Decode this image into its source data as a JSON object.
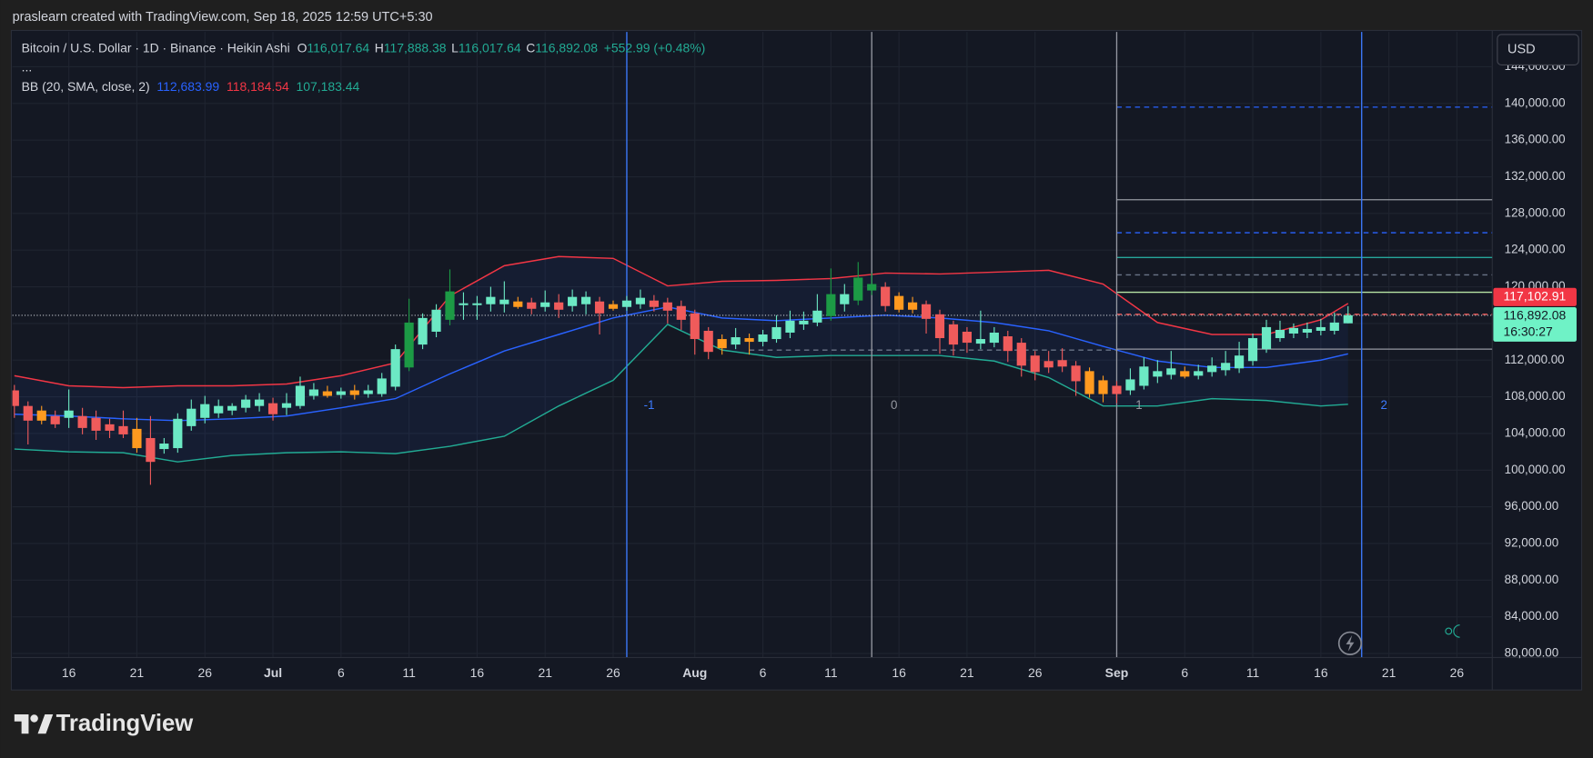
{
  "header": {
    "attribution": "praslearn created with TradingView.com, Sep 18, 2025 12:59 UTC+5:30"
  },
  "chart_data": {
    "type": "candlestick",
    "legend": {
      "title": "Bitcoin / U.S. Dollar · 1D · Binance · Heikin Ashi",
      "fields": [
        {
          "name": "O",
          "value": 116017.64,
          "value_label": "116,017.64"
        },
        {
          "name": "H",
          "value": 117888.38,
          "value_label": "117,888.38"
        },
        {
          "name": "L",
          "value": 116017.64,
          "value_label": "116,017.64"
        },
        {
          "name": "C",
          "value": 116892.08,
          "value_label": "116,892.08"
        }
      ],
      "change_label": "+552.99 (+0.48%)",
      "more": "..."
    },
    "indicator": {
      "title": "BB (20, SMA, close, 2)",
      "values": [
        112683.99,
        118184.54,
        107183.44
      ],
      "value_labels": [
        "112,683.99",
        "118,184.54",
        "107,183.44"
      ],
      "colors": [
        "#2962ff",
        "#f23645",
        "#22ab94"
      ]
    },
    "x": [
      "06-12",
      "06-13",
      "06-14",
      "06-15",
      "06-16",
      "06-17",
      "06-18",
      "06-19",
      "06-20",
      "06-21",
      "06-22",
      "06-23",
      "06-24",
      "06-25",
      "06-26",
      "06-27",
      "06-28",
      "06-29",
      "06-30",
      "07-01",
      "07-02",
      "07-03",
      "07-04",
      "07-05",
      "07-06",
      "07-07",
      "07-08",
      "07-09",
      "07-10",
      "07-11",
      "07-12",
      "07-13",
      "07-14",
      "07-15",
      "07-16",
      "07-17",
      "07-18",
      "07-19",
      "07-20",
      "07-21",
      "07-22",
      "07-23",
      "07-24",
      "07-25",
      "07-26",
      "07-27",
      "07-28",
      "07-29",
      "07-30",
      "07-31",
      "08-01",
      "08-02",
      "08-03",
      "08-04",
      "08-05",
      "08-06",
      "08-07",
      "08-08",
      "08-09",
      "08-10",
      "08-11",
      "08-12",
      "08-13",
      "08-14",
      "08-15",
      "08-16",
      "08-17",
      "08-18",
      "08-19",
      "08-20",
      "08-21",
      "08-22",
      "08-23",
      "08-24",
      "08-25",
      "08-26",
      "08-27",
      "08-28",
      "08-29",
      "08-30",
      "08-31",
      "09-01",
      "09-02",
      "09-03",
      "09-04",
      "09-05",
      "09-06",
      "09-07",
      "09-08",
      "09-09",
      "09-10",
      "09-11",
      "09-12",
      "09-13",
      "09-14",
      "09-15",
      "09-16",
      "09-17",
      "09-18"
    ],
    "open": [
      108700,
      107000,
      106500,
      105900,
      105700,
      105900,
      105700,
      105000,
      104800,
      104500,
      103500,
      102300,
      102400,
      104800,
      105700,
      106200,
      106500,
      106800,
      107000,
      107300,
      106800,
      107000,
      108100,
      108600,
      108200,
      108700,
      108300,
      108300,
      109100,
      111200,
      113700,
      115100,
      116400,
      118000,
      118000,
      118100,
      118100,
      118400,
      118300,
      117800,
      118300,
      117900,
      118100,
      118400,
      118100,
      117800,
      118100,
      118500,
      118300,
      117900,
      117100,
      115200,
      114300,
      113700,
      114400,
      114000,
      114300,
      115000,
      115900,
      116100,
      116800,
      118100,
      118500,
      119600,
      120000,
      119000,
      118300,
      118100,
      117000,
      115900,
      115100,
      113800,
      113900,
      114600,
      113900,
      112500,
      111900,
      112000,
      111400,
      110800,
      109800,
      109200,
      108700,
      109200,
      110200,
      110400,
      110800,
      110300,
      110700,
      110900,
      111100,
      111900,
      113200,
      114400,
      114900,
      115000,
      115200,
      115200,
      116017.64
    ],
    "high": [
      109300,
      107500,
      107000,
      106500,
      108800,
      106800,
      106500,
      105600,
      106500,
      105700,
      105900,
      103500,
      106200,
      107700,
      108100,
      107700,
      107300,
      108200,
      108400,
      107900,
      108400,
      110200,
      109500,
      109200,
      109000,
      109300,
      109300,
      110600,
      113700,
      118700,
      117100,
      118100,
      121900,
      119400,
      119000,
      120000,
      120600,
      118900,
      118800,
      119600,
      119200,
      119700,
      119500,
      118900,
      118500,
      119000,
      119700,
      119100,
      118800,
      118500,
      117500,
      115600,
      114800,
      115500,
      114900,
      115300,
      116900,
      117400,
      117300,
      119200,
      122000,
      120300,
      122700,
      121500,
      120500,
      119400,
      118900,
      118500,
      117500,
      116300,
      115600,
      117400,
      115600,
      115200,
      114400,
      113000,
      113000,
      113300,
      111900,
      111200,
      110300,
      109700,
      111100,
      112300,
      112000,
      113000,
      111300,
      111500,
      112300,
      113000,
      114000,
      114900,
      116400,
      116300,
      116000,
      116100,
      116500,
      117200,
      117888.38
    ],
    "low": [
      105700,
      102800,
      105000,
      104600,
      104600,
      103900,
      103300,
      103500,
      103500,
      101900,
      98400,
      101800,
      101900,
      104300,
      105100,
      105700,
      106000,
      106300,
      106400,
      105400,
      106000,
      106700,
      107700,
      107900,
      107800,
      107700,
      107900,
      108000,
      108700,
      110800,
      113200,
      114500,
      115800,
      116400,
      116400,
      117300,
      117200,
      117600,
      117000,
      117300,
      116600,
      117300,
      117000,
      114800,
      117400,
      117400,
      117600,
      117300,
      116000,
      115300,
      112600,
      112100,
      112600,
      113200,
      112600,
      113500,
      113900,
      114400,
      115300,
      115700,
      116300,
      117300,
      118000,
      119100,
      117300,
      117200,
      117100,
      114900,
      112700,
      112500,
      112800,
      113200,
      113400,
      111800,
      110200,
      109800,
      110600,
      110700,
      108100,
      107900,
      107400,
      107300,
      108200,
      108800,
      109500,
      109900,
      110000,
      109900,
      110200,
      110300,
      110600,
      111400,
      112800,
      114000,
      114400,
      114400,
      114700,
      114800,
      116017.64
    ],
    "close": [
      107000,
      105400,
      105400,
      105000,
      106500,
      104600,
      104300,
      104300,
      103900,
      102400,
      100900,
      102900,
      105600,
      106700,
      107200,
      107000,
      107000,
      107700,
      107700,
      106100,
      107300,
      109200,
      108800,
      108100,
      108600,
      108200,
      108700,
      110000,
      113200,
      116100,
      116600,
      117500,
      119500,
      118200,
      118200,
      118900,
      118600,
      117800,
      117600,
      118300,
      117500,
      118900,
      118900,
      117100,
      117600,
      118500,
      118800,
      117800,
      117400,
      116400,
      114300,
      112900,
      113300,
      114500,
      114000,
      114800,
      115600,
      116300,
      116300,
      117400,
      119200,
      119200,
      121000,
      120300,
      117900,
      117500,
      117500,
      116500,
      114400,
      113700,
      113900,
      114300,
      115000,
      113000,
      111400,
      110700,
      111200,
      111300,
      109700,
      108300,
      108300,
      108300,
      109900,
      111300,
      110800,
      111100,
      110200,
      110800,
      111400,
      111700,
      112500,
      114400,
      115600,
      115300,
      115500,
      115400,
      115600,
      116100,
      116892.08
    ],
    "colors": [
      "#f05b5b",
      "#f05b5b",
      "#ff9a1f",
      "#f05b5b",
      "#6ce9c4",
      "#f05b5b",
      "#f05b5b",
      "#f05b5b",
      "#f05b5b",
      "#ff9a1f",
      "#f05b5b",
      "#6ce9c4",
      "#6ce9c4",
      "#6ce9c4",
      "#6ce9c4",
      "#6ce9c4",
      "#6ce9c4",
      "#6ce9c4",
      "#6ce9c4",
      "#f05b5b",
      "#6ce9c4",
      "#6ce9c4",
      "#6ce9c4",
      "#ff9a1f",
      "#6ce9c4",
      "#ff9a1f",
      "#6ce9c4",
      "#6ce9c4",
      "#6ce9c4",
      "#1c9a45",
      "#6ce9c4",
      "#6ce9c4",
      "#1c9a45",
      "#6ce9c4",
      "#6ce9c4",
      "#6ce9c4",
      "#6ce9c4",
      "#ff9a1f",
      "#f05b5b",
      "#6ce9c4",
      "#f05b5b",
      "#6ce9c4",
      "#6ce9c4",
      "#f05b5b",
      "#ff9a1f",
      "#6ce9c4",
      "#6ce9c4",
      "#f05b5b",
      "#f05b5b",
      "#f05b5b",
      "#f05b5b",
      "#f05b5b",
      "#ff9a1f",
      "#6ce9c4",
      "#ff9a1f",
      "#6ce9c4",
      "#6ce9c4",
      "#6ce9c4",
      "#6ce9c4",
      "#6ce9c4",
      "#1c9a45",
      "#6ce9c4",
      "#1c9a45",
      "#1c9a45",
      "#f05b5b",
      "#ff9a1f",
      "#ff9a1f",
      "#f05b5b",
      "#f05b5b",
      "#f05b5b",
      "#f05b5b",
      "#6ce9c4",
      "#6ce9c4",
      "#f05b5b",
      "#f05b5b",
      "#f05b5b",
      "#f05b5b",
      "#f05b5b",
      "#f05b5b",
      "#ff9a1f",
      "#ff9a1f",
      "#f05b5b",
      "#6ce9c4",
      "#6ce9c4",
      "#6ce9c4",
      "#6ce9c4",
      "#ff9a1f",
      "#6ce9c4",
      "#6ce9c4",
      "#6ce9c4",
      "#6ce9c4",
      "#6ce9c4",
      "#6ce9c4",
      "#6ce9c4",
      "#6ce9c4",
      "#6ce9c4",
      "#6ce9c4",
      "#6ce9c4",
      "#6ce9c4"
    ],
    "bands": {
      "x": [
        "06-12",
        "06-16",
        "06-20",
        "06-24",
        "06-28",
        "07-02",
        "07-06",
        "07-10",
        "07-14",
        "07-18",
        "07-22",
        "07-26",
        "07-30",
        "08-03",
        "08-07",
        "08-11",
        "08-15",
        "08-19",
        "08-23",
        "08-27",
        "08-31",
        "09-04",
        "09-08",
        "09-12",
        "09-16",
        "09-18"
      ],
      "fill": "rgba(41,98,255,0.07)",
      "upper": {
        "color": "#f23645",
        "values": [
          110300,
          109200,
          109000,
          109200,
          109200,
          109400,
          110300,
          111700,
          119000,
          122300,
          123300,
          123100,
          120100,
          120600,
          120700,
          120900,
          121500,
          121400,
          121600,
          121800,
          120300,
          116100,
          114800,
          114800,
          116400,
          118184.54
        ]
      },
      "basis": {
        "color": "#2962ff",
        "values": [
          106100,
          105900,
          105600,
          105400,
          105600,
          105900,
          106800,
          107800,
          110500,
          113000,
          114800,
          116600,
          117800,
          116600,
          116300,
          116600,
          116900,
          116600,
          116100,
          115200,
          113500,
          111900,
          111200,
          111200,
          112000,
          112683.99
        ]
      },
      "lower": {
        "color": "#22ab94",
        "values": [
          102300,
          102000,
          101900,
          100900,
          101600,
          101900,
          102000,
          101800,
          102600,
          103700,
          107000,
          109800,
          115900,
          113100,
          112300,
          112500,
          112500,
          112500,
          111900,
          110100,
          107000,
          107000,
          107800,
          107600,
          107000,
          107183.44
        ]
      }
    },
    "xlim": [
      "06-12",
      "09-28"
    ],
    "xticks": [
      {
        "value": "06-16",
        "label": "16"
      },
      {
        "value": "06-21",
        "label": "21"
      },
      {
        "value": "06-26",
        "label": "26"
      },
      {
        "value": "07-01",
        "label": "Jul"
      },
      {
        "value": "07-06",
        "label": "6"
      },
      {
        "value": "07-11",
        "label": "11"
      },
      {
        "value": "07-16",
        "label": "16"
      },
      {
        "value": "07-21",
        "label": "21"
      },
      {
        "value": "07-26",
        "label": "26"
      },
      {
        "value": "08-01",
        "label": "Aug"
      },
      {
        "value": "08-06",
        "label": "6"
      },
      {
        "value": "08-11",
        "label": "11"
      },
      {
        "value": "08-16",
        "label": "16"
      },
      {
        "value": "08-21",
        "label": "21"
      },
      {
        "value": "08-26",
        "label": "26"
      },
      {
        "value": "09-01",
        "label": "Sep"
      },
      {
        "value": "09-06",
        "label": "6"
      },
      {
        "value": "09-11",
        "label": "11"
      },
      {
        "value": "09-16",
        "label": "16"
      },
      {
        "value": "09-21",
        "label": "21"
      },
      {
        "value": "09-26",
        "label": "26"
      }
    ],
    "ylim": [
      79600,
      147800
    ],
    "yticks": [
      {
        "value": 80000,
        "label": "80,000.00"
      },
      {
        "value": 84000,
        "label": "84,000.00"
      },
      {
        "value": 88000,
        "label": "88,000.00"
      },
      {
        "value": 92000,
        "label": "92,000.00"
      },
      {
        "value": 96000,
        "label": "96,000.00"
      },
      {
        "value": 100000,
        "label": "100,000.00"
      },
      {
        "value": 104000,
        "label": "104,000.00"
      },
      {
        "value": 108000,
        "label": "108,000.00"
      },
      {
        "value": 112000,
        "label": "112,000.00"
      },
      {
        "value": 116000,
        "label": "116,000.00"
      },
      {
        "value": 120000,
        "label": "120,000.00"
      },
      {
        "value": 124000,
        "label": "124,000.00"
      },
      {
        "value": 128000,
        "label": "128,000.00"
      },
      {
        "value": 132000,
        "label": "132,000.00"
      },
      {
        "value": 136000,
        "label": "136,000.00"
      },
      {
        "value": 140000,
        "label": "140,000.00"
      },
      {
        "value": 144000,
        "label": "144,000.00"
      }
    ],
    "grid": true,
    "levels": [
      {
        "value": 139600,
        "from": "09-01",
        "color": "#2962ff",
        "dash": true
      },
      {
        "value": 129500,
        "from": "09-01",
        "color": "#9598a1",
        "dash": false
      },
      {
        "value": 125900,
        "from": "09-01",
        "color": "#2962ff",
        "dash": true
      },
      {
        "value": 123200,
        "from": "09-01",
        "color": "#26a69a",
        "dash": false
      },
      {
        "value": 121300,
        "from": "09-01",
        "color": "#6a7487",
        "dash": true
      },
      {
        "value": 119400,
        "from": "09-01",
        "color": "#b7e4a4",
        "dash": false
      },
      {
        "value": 117000,
        "from": "09-01",
        "color": "#f05a5a",
        "dash": true
      },
      {
        "value": 113200,
        "from": "09-01",
        "color": "#9598a1",
        "dash": false
      },
      {
        "value": 113100,
        "from": "08-05",
        "to": "09-01",
        "color": "#6a7487",
        "dash": true
      }
    ],
    "time_zones": [
      {
        "x": "07-27",
        "value": -1,
        "color": "#3d7bff"
      },
      {
        "x": "08-14",
        "value": 0,
        "color": "#9598a1"
      },
      {
        "x": "09-01",
        "value": 1,
        "color": "#9598a1"
      },
      {
        "x": "09-19",
        "value": 2,
        "color": "#3d7bff"
      }
    ],
    "price_labels": [
      {
        "value": 117102.91,
        "label": "117,102.91",
        "color": "#f23645"
      },
      {
        "value": 116892.08,
        "label": "116,892.08",
        "color": "#6ff2c6",
        "countdown": "16:30:27"
      }
    ],
    "currency": "USD"
  },
  "footer": {
    "brand": "TradingView"
  }
}
